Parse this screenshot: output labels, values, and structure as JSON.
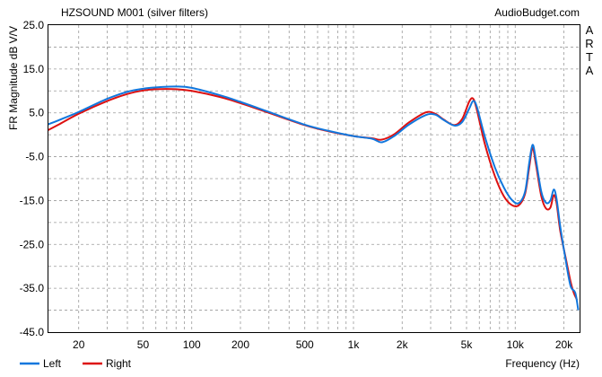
{
  "chart_data": {
    "type": "line",
    "title": "HZSOUND M001 (silver filters)",
    "source_label": "AudioBudget.com",
    "side_label": "ARTA",
    "ylabel": "FR Magnitude dB V/V",
    "xlabel": "Frequency (Hz)",
    "x_scale": "log",
    "xlim": [
      13,
      25000
    ],
    "ylim": [
      -45,
      25
    ],
    "grid": true,
    "y_ticks": [
      "25.0",
      "15.0",
      "5.0",
      "-5.0",
      "-15.0",
      "-25.0",
      "-35.0",
      "-45.0"
    ],
    "x_ticks": [
      {
        "value": 20,
        "label": "20"
      },
      {
        "value": 50,
        "label": "50"
      },
      {
        "value": 100,
        "label": "100"
      },
      {
        "value": 200,
        "label": "200"
      },
      {
        "value": 500,
        "label": "500"
      },
      {
        "value": 1000,
        "label": "1k"
      },
      {
        "value": 2000,
        "label": "2k"
      },
      {
        "value": 5000,
        "label": "5k"
      },
      {
        "value": 10000,
        "label": "10k"
      },
      {
        "value": 20000,
        "label": "20k"
      }
    ],
    "legend_position": "bottom-left",
    "series": [
      {
        "name": "Right",
        "color": "#dd1111",
        "points": [
          [
            13,
            1.1
          ],
          [
            15,
            2.3
          ],
          [
            20,
            4.8
          ],
          [
            30,
            7.7
          ],
          [
            40,
            9.3
          ],
          [
            50,
            10.1
          ],
          [
            60,
            10.4
          ],
          [
            80,
            10.4
          ],
          [
            100,
            10.0
          ],
          [
            150,
            8.6
          ],
          [
            200,
            7.2
          ],
          [
            300,
            5.0
          ],
          [
            500,
            2.2
          ],
          [
            700,
            0.8
          ],
          [
            1000,
            -0.3
          ],
          [
            1300,
            -0.8
          ],
          [
            1500,
            -1.1
          ],
          [
            1800,
            0.2
          ],
          [
            2200,
            2.8
          ],
          [
            2800,
            5.1
          ],
          [
            3200,
            4.8
          ],
          [
            3600,
            3.5
          ],
          [
            4200,
            2.2
          ],
          [
            4700,
            3.6
          ],
          [
            5200,
            7.6
          ],
          [
            5500,
            8.2
          ],
          [
            5800,
            5.6
          ],
          [
            6500,
            -2.2
          ],
          [
            7500,
            -9.5
          ],
          [
            8500,
            -14.0
          ],
          [
            9500,
            -16.0
          ],
          [
            10500,
            -16.1
          ],
          [
            11500,
            -13.5
          ],
          [
            12200,
            -7.5
          ],
          [
            12800,
            -3.0
          ],
          [
            13400,
            -6.5
          ],
          [
            14500,
            -14.0
          ],
          [
            15500,
            -16.8
          ],
          [
            16500,
            -16.6
          ],
          [
            17300,
            -13.8
          ],
          [
            18000,
            -15.5
          ],
          [
            19000,
            -22.0
          ],
          [
            20500,
            -28.0
          ],
          [
            22000,
            -33.5
          ],
          [
            23000,
            -36.0
          ],
          [
            24000,
            -37.5
          ]
        ]
      },
      {
        "name": "Left",
        "color": "#1177dd",
        "points": [
          [
            13,
            2.4
          ],
          [
            15,
            3.3
          ],
          [
            20,
            5.2
          ],
          [
            30,
            8.2
          ],
          [
            40,
            9.8
          ],
          [
            50,
            10.5
          ],
          [
            60,
            10.8
          ],
          [
            80,
            11.0
          ],
          [
            100,
            10.7
          ],
          [
            150,
            9.0
          ],
          [
            200,
            7.5
          ],
          [
            300,
            5.2
          ],
          [
            500,
            2.3
          ],
          [
            700,
            0.9
          ],
          [
            1000,
            -0.3
          ],
          [
            1300,
            -0.9
          ],
          [
            1500,
            -1.7
          ],
          [
            1800,
            -0.2
          ],
          [
            2200,
            2.3
          ],
          [
            2800,
            4.5
          ],
          [
            3200,
            4.6
          ],
          [
            3600,
            3.4
          ],
          [
            4200,
            2.1
          ],
          [
            4700,
            2.9
          ],
          [
            5200,
            6.0
          ],
          [
            5500,
            7.7
          ],
          [
            5800,
            6.3
          ],
          [
            6500,
            -0.5
          ],
          [
            7500,
            -7.5
          ],
          [
            8500,
            -12.0
          ],
          [
            9500,
            -14.8
          ],
          [
            10500,
            -15.6
          ],
          [
            11500,
            -13.0
          ],
          [
            12200,
            -6.5
          ],
          [
            12800,
            -2.3
          ],
          [
            13400,
            -5.5
          ],
          [
            14500,
            -13.0
          ],
          [
            15500,
            -15.5
          ],
          [
            16500,
            -15.0
          ],
          [
            17300,
            -12.5
          ],
          [
            18000,
            -14.5
          ],
          [
            19000,
            -21.0
          ],
          [
            20500,
            -28.5
          ],
          [
            22000,
            -34.5
          ],
          [
            23500,
            -36.0
          ],
          [
            24500,
            -39.8
          ]
        ]
      }
    ]
  }
}
